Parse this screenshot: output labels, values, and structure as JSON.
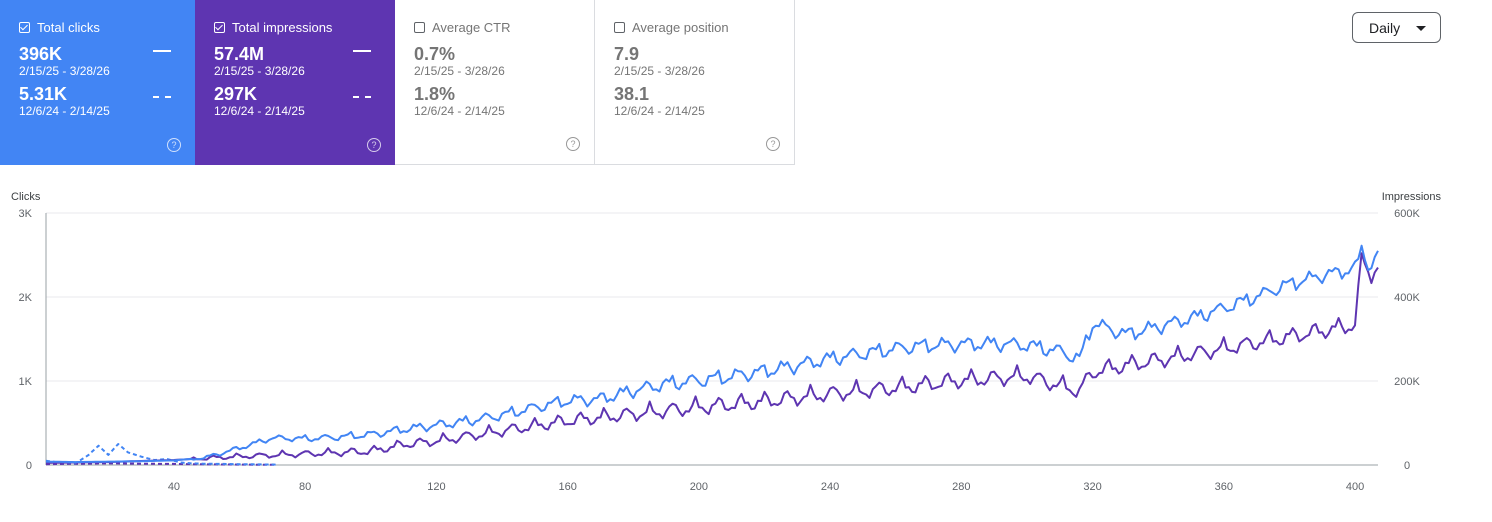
{
  "cards": [
    {
      "label": "Total clicks",
      "checked": true,
      "value_current": "396K",
      "range_current": "2/15/25 - 3/28/26",
      "value_previous": "5.31K",
      "range_previous": "12/6/24 - 2/14/25",
      "color": "#4285f4"
    },
    {
      "label": "Total impressions",
      "checked": true,
      "value_current": "57.4M",
      "range_current": "2/15/25 - 3/28/26",
      "value_previous": "297K",
      "range_previous": "12/6/24 - 2/14/25",
      "color": "#5e35b1"
    },
    {
      "label": "Average CTR",
      "checked": false,
      "value_current": "0.7%",
      "range_current": "2/15/25 - 3/28/26",
      "value_previous": "1.8%",
      "range_previous": "12/6/24 - 2/14/25"
    },
    {
      "label": "Average position",
      "checked": false,
      "value_current": "7.9",
      "range_current": "2/15/25 - 3/28/26",
      "value_previous": "38.1",
      "range_previous": "12/6/24 - 2/14/25"
    }
  ],
  "help_glyph": "?",
  "granularity": {
    "selected": "Daily"
  },
  "chart_data": {
    "type": "line",
    "x_ticks": [
      "40",
      "80",
      "120",
      "160",
      "200",
      "240",
      "280",
      "320",
      "360",
      "400"
    ],
    "x_range": [
      1,
      407
    ],
    "left_axis": {
      "title": "Clicks",
      "ticks": [
        "0",
        "1K",
        "2K",
        "3K"
      ],
      "range": [
        0,
        3000
      ]
    },
    "right_axis": {
      "title": "Impressions",
      "ticks": [
        "0",
        "200K",
        "400K",
        "600K"
      ],
      "range": [
        0,
        600000
      ]
    },
    "grid": true,
    "series": [
      {
        "key": "clicks",
        "axis": "left",
        "style": "solid",
        "color": "#4285f4",
        "points": [
          [
            1,
            40
          ],
          [
            10,
            35
          ],
          [
            20,
            40
          ],
          [
            30,
            45
          ],
          [
            40,
            55
          ],
          [
            50,
            90
          ],
          [
            60,
            200
          ],
          [
            70,
            320
          ],
          [
            80,
            310
          ],
          [
            90,
            330
          ],
          [
            100,
            360
          ],
          [
            110,
            420
          ],
          [
            120,
            470
          ],
          [
            130,
            520
          ],
          [
            140,
            590
          ],
          [
            150,
            680
          ],
          [
            160,
            760
          ],
          [
            170,
            780
          ],
          [
            180,
            880
          ],
          [
            190,
            960
          ],
          [
            200,
            1000
          ],
          [
            210,
            1050
          ],
          [
            220,
            1110
          ],
          [
            230,
            1180
          ],
          [
            240,
            1260
          ],
          [
            250,
            1320
          ],
          [
            260,
            1380
          ],
          [
            270,
            1420
          ],
          [
            280,
            1430
          ],
          [
            290,
            1440
          ],
          [
            300,
            1420
          ],
          [
            310,
            1350
          ],
          [
            316,
            1250
          ],
          [
            320,
            1680
          ],
          [
            330,
            1550
          ],
          [
            340,
            1640
          ],
          [
            350,
            1740
          ],
          [
            360,
            1860
          ],
          [
            370,
            2000
          ],
          [
            380,
            2150
          ],
          [
            390,
            2250
          ],
          [
            400,
            2330
          ],
          [
            402,
            2560
          ],
          [
            405,
            2330
          ],
          [
            407,
            2550
          ]
        ]
      },
      {
        "key": "impressions",
        "axis": "right",
        "style": "solid",
        "color": "#5e35b1",
        "points": [
          [
            1,
            5000
          ],
          [
            20,
            7000
          ],
          [
            40,
            12000
          ],
          [
            60,
            20000
          ],
          [
            80,
            26000
          ],
          [
            100,
            32000
          ],
          [
            110,
            48000
          ],
          [
            120,
            56000
          ],
          [
            140,
            80000
          ],
          [
            160,
            104000
          ],
          [
            180,
            120000
          ],
          [
            200,
            136000
          ],
          [
            220,
            150000
          ],
          [
            240,
            168000
          ],
          [
            260,
            182000
          ],
          [
            280,
            200000
          ],
          [
            300,
            210000
          ],
          [
            316,
            175000
          ],
          [
            320,
            220000
          ],
          [
            330,
            236000
          ],
          [
            340,
            248000
          ],
          [
            350,
            262000
          ],
          [
            360,
            276000
          ],
          [
            370,
            290000
          ],
          [
            380,
            304000
          ],
          [
            390,
            318000
          ],
          [
            400,
            332000
          ],
          [
            402,
            488000
          ],
          [
            405,
            452000
          ],
          [
            407,
            470000
          ]
        ]
      },
      {
        "key": "clicks_previous",
        "axis": "left",
        "style": "dashed",
        "color": "#4285f4",
        "points": [
          [
            1,
            50
          ],
          [
            5,
            30
          ],
          [
            10,
            20
          ],
          [
            14,
            120
          ],
          [
            17,
            230
          ],
          [
            20,
            120
          ],
          [
            23,
            250
          ],
          [
            26,
            150
          ],
          [
            30,
            100
          ],
          [
            34,
            60
          ],
          [
            38,
            70
          ],
          [
            42,
            30
          ],
          [
            45,
            20
          ],
          [
            50,
            15
          ],
          [
            60,
            10
          ],
          [
            71,
            5
          ]
        ]
      },
      {
        "key": "impressions_previous",
        "axis": "right",
        "style": "dashed",
        "color": "#5e35b1",
        "points": [
          [
            1,
            2000
          ],
          [
            10,
            3000
          ],
          [
            20,
            4000
          ],
          [
            30,
            3000
          ],
          [
            40,
            2500
          ],
          [
            50,
            1500
          ],
          [
            60,
            1000
          ],
          [
            71,
            500
          ]
        ]
      }
    ]
  }
}
